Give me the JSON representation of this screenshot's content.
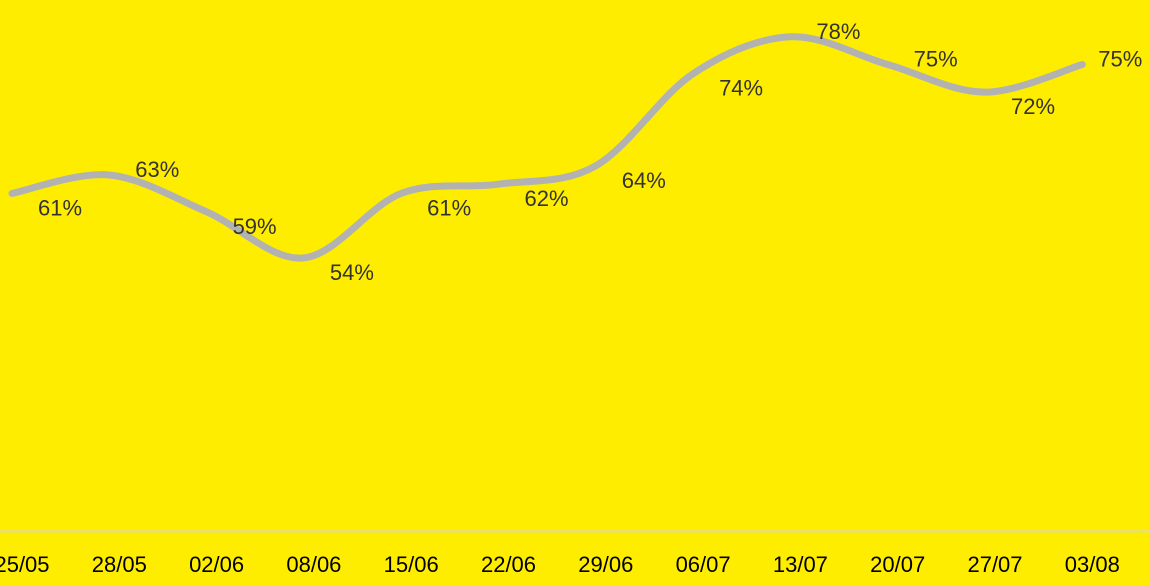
{
  "chart_data": {
    "type": "line",
    "categories": [
      "25/05",
      "28/05",
      "02/06",
      "08/06",
      "15/06",
      "22/06",
      "29/06",
      "06/07",
      "13/07",
      "20/07",
      "27/07",
      "03/08"
    ],
    "series": [
      {
        "values": [
          61,
          63,
          59,
          54,
          61,
          62,
          64,
          74,
          78,
          75,
          72,
          75
        ],
        "labels": [
          "61%",
          "63%",
          "59%",
          "54%",
          "61%",
          "62%",
          "64%",
          "74%",
          "78%",
          "75%",
          "72%",
          "75%"
        ]
      }
    ],
    "ylim": [
      25,
      82
    ],
    "grid": false,
    "legend": "none",
    "colors": {
      "background": "#ffed00",
      "line": "#b2b2b2",
      "text": "#333333",
      "axis": "#e8e070"
    }
  }
}
